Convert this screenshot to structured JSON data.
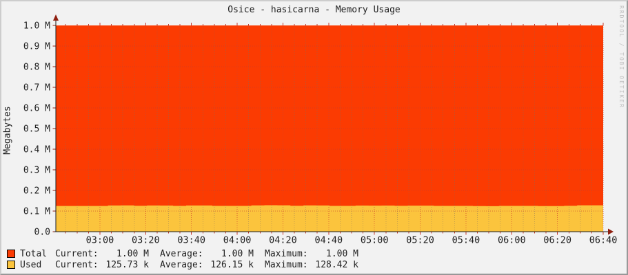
{
  "title": "Osice - hasicarna - Memory Usage",
  "watermark": "RRDTOOL / TOBI OETIKER",
  "colors": {
    "total": "#fb3b02",
    "used": "#fbc43d",
    "axis": "#1b1b1b",
    "arrow": "#8f1f10",
    "tick_major": "#c5352b",
    "grid_major_v": "rgba(206,70,50,0.75)",
    "grid_minor_v": "rgba(120,110,100,0.45)",
    "grid_h": "rgba(200,60,45,0.65)",
    "background": "#f2f2f2",
    "text": "#1f1f1f"
  },
  "chart_data": {
    "type": "area",
    "title": "Osice - hasicarna - Memory Usage",
    "ylabel": "Megabytes",
    "xlabel": "",
    "ylim": [
      0,
      1000000
    ],
    "grid": true,
    "legend_position": "bottom-left",
    "y_tick_labels": [
      "1.0 M",
      "0.9 M",
      "0.8 M",
      "0.7 M",
      "0.6 M",
      "0.5 M",
      "0.4 M",
      "0.3 M",
      "0.2 M",
      "0.1 M",
      "0.0"
    ],
    "y_tick_values": [
      1000000,
      900000,
      800000,
      700000,
      600000,
      500000,
      400000,
      300000,
      200000,
      100000,
      0
    ],
    "x_tick_labels": [
      "03:00",
      "03:20",
      "03:40",
      "04:00",
      "04:20",
      "04:40",
      "05:00",
      "05:20",
      "05:40",
      "06:00",
      "06:20",
      "06:40"
    ],
    "x_first_major_frac": 0.0806,
    "x_major_step_frac": 0.083585,
    "minor_per_major": 4,
    "series": [
      {
        "name": "Total",
        "color": "#fb3b02",
        "style": "flat-area",
        "value": 1000000
      },
      {
        "name": "Used",
        "color": "#fbc43d",
        "style": "step-area",
        "values": [
          124600,
          124500,
          124500,
          124600,
          126900,
          127400,
          125200,
          127000,
          126800,
          125100,
          127100,
          126900,
          125000,
          125100,
          125000,
          127600,
          128420,
          128000,
          125200,
          127200,
          126900,
          125100,
          125000,
          126600,
          126500,
          126700,
          125200,
          126400,
          126500,
          125100,
          125000,
          124900,
          123900,
          123800,
          125000,
          125100,
          125000,
          124000,
          123900,
          125200,
          127900,
          128100,
          125730
        ]
      }
    ]
  },
  "legend": {
    "col_labels": {
      "current": "Current:",
      "average": "Average:",
      "maximum": "Maximum:"
    },
    "rows": [
      {
        "name": "Total",
        "color": "#fb3b02",
        "current": "1.00 M",
        "average": "1.00 M",
        "maximum": "1.00 M"
      },
      {
        "name": "Used",
        "color": "#fbc43d",
        "current": "125.73 k",
        "average": "126.15 k",
        "maximum": "128.42 k"
      }
    ]
  }
}
